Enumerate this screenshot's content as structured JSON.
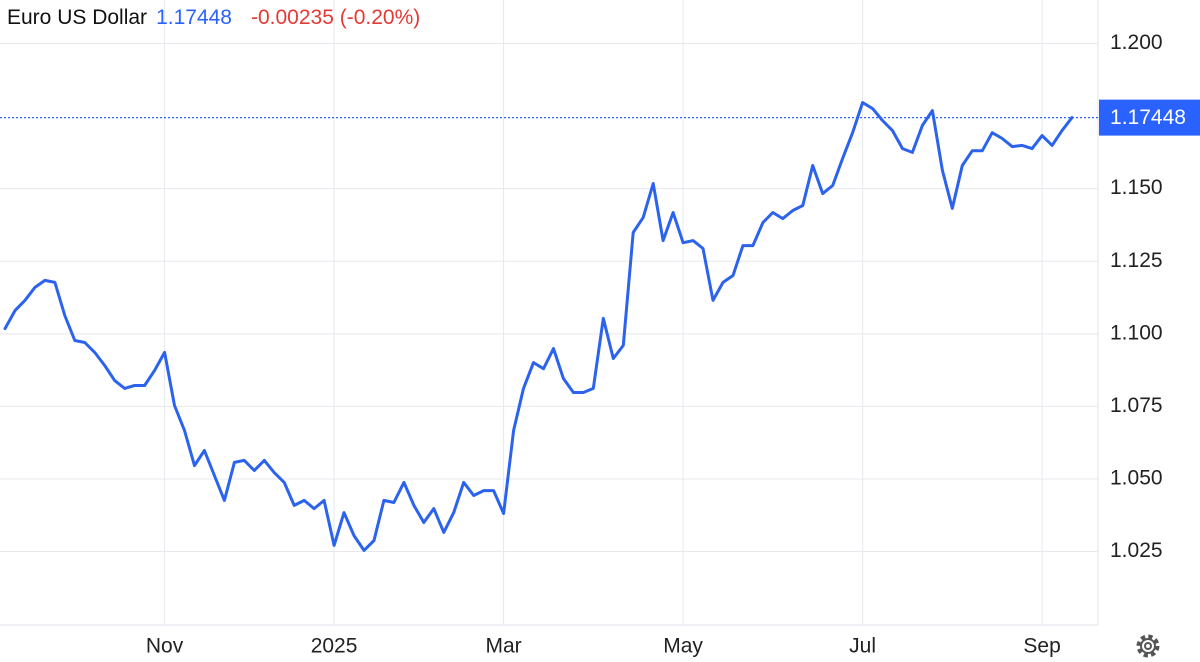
{
  "chart_data": {
    "type": "line",
    "title": "Euro US Dollar",
    "last_value": 1.17448,
    "change_label": "-0.00235 (-0.20%)",
    "categories": [
      null,
      null,
      null,
      null,
      null,
      null,
      null,
      null,
      null,
      null,
      null,
      null,
      null,
      null,
      null,
      null,
      "Nov",
      null,
      null,
      null,
      null,
      null,
      null,
      null,
      null,
      null,
      null,
      null,
      null,
      null,
      null,
      null,
      null,
      "2025",
      null,
      null,
      null,
      null,
      null,
      null,
      null,
      null,
      null,
      null,
      null,
      null,
      null,
      null,
      null,
      null,
      "Mar",
      null,
      null,
      null,
      null,
      null,
      null,
      null,
      null,
      null,
      null,
      null,
      null,
      null,
      null,
      null,
      null,
      null,
      "May",
      null,
      null,
      null,
      null,
      null,
      null,
      null,
      null,
      null,
      null,
      null,
      null,
      null,
      null,
      null,
      null,
      null,
      "Jul",
      null,
      null,
      null,
      null,
      null,
      null,
      null,
      null,
      null,
      null,
      null,
      null,
      null,
      null,
      null,
      null,
      null,
      "Sep",
      null,
      null,
      null
    ],
    "series": [
      {
        "name": "Euro US Dollar",
        "color": "#2b63ee",
        "values": [
          1.1018,
          1.108,
          1.1115,
          1.116,
          1.1184,
          1.1177,
          1.1063,
          1.0977,
          1.097,
          1.0936,
          1.0891,
          1.0839,
          1.0812,
          1.0822,
          1.0822,
          1.0874,
          1.0936,
          1.0753,
          1.0667,
          1.0546,
          1.0598,
          1.0512,
          1.0426,
          1.0557,
          1.0564,
          1.0529,
          1.0564,
          1.0522,
          1.0488,
          1.0409,
          1.0426,
          1.0398,
          1.0426,
          1.0271,
          1.0384,
          1.0305,
          1.0254,
          1.0288,
          1.0426,
          1.0419,
          1.0488,
          1.0409,
          1.035,
          1.0398,
          1.0316,
          1.0384,
          1.0488,
          1.0443,
          1.046,
          1.046,
          1.0381,
          1.0667,
          1.0812,
          1.0901,
          1.088,
          1.0949,
          1.0846,
          1.0798,
          1.0798,
          1.0812,
          1.1053,
          1.0915,
          1.096,
          1.1349,
          1.1401,
          1.1518,
          1.1321,
          1.1418,
          1.1314,
          1.1321,
          1.1294,
          1.1115,
          1.1177,
          1.1201,
          1.1304,
          1.1304,
          1.1383,
          1.1418,
          1.1397,
          1.1425,
          1.1442,
          1.158,
          1.1483,
          1.1511,
          1.1604,
          1.1693,
          1.1797,
          1.1776,
          1.1735,
          1.17,
          1.1638,
          1.1625,
          1.1718,
          1.1769,
          1.1563,
          1.1432,
          1.158,
          1.1631,
          1.1631,
          1.1693,
          1.1673,
          1.1645,
          1.1649,
          1.1638,
          1.1683,
          1.1649,
          1.17,
          1.17448
        ]
      }
    ],
    "ylim": [
      1.0,
      1.215
    ],
    "yticks": [
      {
        "value": 1.2,
        "label": "1.200"
      },
      {
        "value": 1.15,
        "label": "1.150"
      },
      1.125,
      {
        "value": 1.1,
        "label": "1.100"
      },
      1.075,
      {
        "value": 1.05,
        "label": "1.050"
      },
      1.025
    ],
    "grid": true
  }
}
